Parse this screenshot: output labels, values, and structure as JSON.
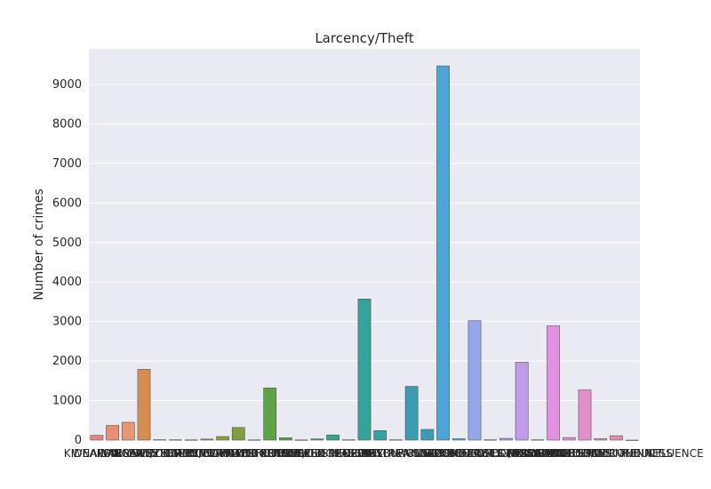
{
  "chart_data": {
    "type": "bar",
    "title": "Larcency/Theft",
    "xlabel": "",
    "ylabel": "Number of crimes",
    "ylim": [
      0,
      9900
    ],
    "yticks": [
      0,
      1000,
      2000,
      3000,
      4000,
      5000,
      6000,
      7000,
      8000,
      9000
    ],
    "grid": true,
    "legend": "none",
    "categories": [
      "KIDNAPPING",
      "WEAPON LAWS",
      "WARRANTS",
      "LARCENY/THEFT",
      "EMBEZZLEMENT",
      "EXTORTION",
      "GAMBLING",
      "BRIBERY",
      "FORGERY/COUNTERFEITING",
      "FRAUD",
      "FAMILY OFFENSES",
      "OTHER OFFENSES",
      "ROBBERY",
      "PORNOGRAPHY/OBSCENE MAT",
      "RECOVERED VEHICLE",
      "STOLEN PROPERTY",
      "LOITERING",
      "ASSAULT",
      "ARSON",
      "TREA",
      "BURGLARY",
      "VANDALISM",
      "NON-CRIMINAL",
      "SUSPICIOUS OCC",
      "SECONDARY CODES",
      "SEX OFFENSES FORCIBLE",
      "SEX OFFENSES NON FORCIBLE",
      "DRUG/NARCOTIC",
      "RUNAWAY",
      "MISSING PERSON",
      "VEHICLE THEFT",
      "TRESPASS",
      "DISORDERLY CONDUCT",
      "DRIVING UNDER THE INFLUENCE",
      "DRUNKENNESS"
    ],
    "values": [
      120,
      370,
      450,
      1790,
      10,
      8,
      6,
      25,
      90,
      320,
      6,
      1320,
      60,
      5,
      30,
      130,
      8,
      3570,
      240,
      8,
      1360,
      270,
      9470,
      35,
      3020,
      8,
      45,
      1970,
      8,
      2890,
      65,
      1270,
      35,
      110,
      0
    ],
    "colors": [
      "#e88480",
      "#e98c78",
      "#ea9574",
      "#d58c4e",
      "#c89048",
      "#b89543",
      "#a8993e",
      "#9c9c3b",
      "#8f9e3a",
      "#809f3c",
      "#6fa13e",
      "#5fa444",
      "#52a44a",
      "#44a562",
      "#3da57a",
      "#3ba58a",
      "#39a594",
      "#36a29c",
      "#35a1a2",
      "#379fa8",
      "#3a9daf",
      "#3c9bb5",
      "#4aa6d8",
      "#5fa2e3",
      "#93a7ea",
      "#a7a1ec",
      "#b39cec",
      "#c19be8",
      "#cd93e6",
      "#e491e2",
      "#e58ed8",
      "#e18fc8",
      "#e58fb8",
      "#e48ea8",
      "#e58a98"
    ]
  }
}
